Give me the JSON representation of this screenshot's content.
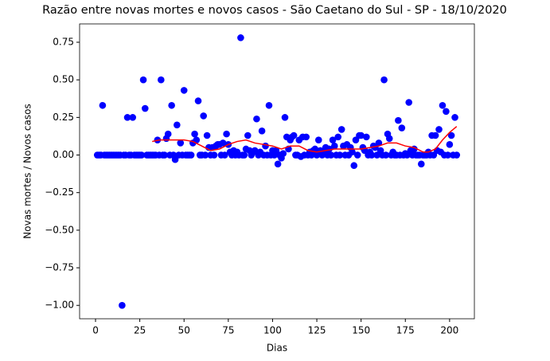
{
  "chart_data": {
    "type": "scatter",
    "title": "Razão entre novas mortes e novos casos - São Caetano do Sul - SP - 18/10/2020",
    "x_label": "Dias",
    "y_label": "Novas mortes / Novos casos",
    "xlim": [
      -9,
      214
    ],
    "ylim": [
      -1.089,
      0.872
    ],
    "xticks": [
      0,
      25,
      50,
      75,
      100,
      125,
      150,
      175,
      200
    ],
    "yticks": [
      {
        "value": -1,
        "label": "−1.00"
      },
      {
        "value": -0.75,
        "label": "−0.75"
      },
      {
        "value": -0.5,
        "label": "−0.50"
      },
      {
        "value": -0.25,
        "label": "−0.25"
      },
      {
        "value": 0,
        "label": "0.00"
      },
      0.25,
      {
        "value": 0.5,
        "label": "0.50"
      },
      0.75
    ],
    "series": [
      {
        "type": "scatter",
        "color": "#0000ff",
        "x": [
          1,
          2,
          3,
          4,
          5,
          6,
          7,
          8,
          9,
          10,
          11,
          12,
          13,
          14,
          15,
          16,
          17,
          18,
          19,
          20,
          21,
          22,
          23,
          24,
          25,
          26,
          27,
          28,
          29,
          30,
          31,
          32,
          33,
          34,
          35,
          36,
          37,
          38,
          39,
          40,
          41,
          42,
          43,
          44,
          45,
          46,
          47,
          48,
          49,
          50,
          51,
          52,
          53,
          54,
          55,
          56,
          57,
          58,
          59,
          60,
          61,
          62,
          63,
          64,
          65,
          66,
          67,
          68,
          69,
          70,
          71,
          72,
          73,
          74,
          75,
          76,
          77,
          78,
          79,
          80,
          81,
          82,
          83,
          84,
          85,
          86,
          87,
          88,
          89,
          90,
          91,
          92,
          93,
          94,
          95,
          96,
          97,
          98,
          99,
          100,
          101,
          102,
          103,
          104,
          105,
          106,
          107,
          108,
          109,
          110,
          111,
          112,
          113,
          114,
          115,
          116,
          117,
          118,
          119,
          120,
          121,
          122,
          123,
          124,
          125,
          126,
          127,
          128,
          129,
          130,
          131,
          132,
          133,
          134,
          135,
          136,
          137,
          138,
          139,
          140,
          141,
          142,
          143,
          144,
          145,
          146,
          147,
          148,
          149,
          150,
          151,
          152,
          153,
          154,
          155,
          156,
          157,
          158,
          159,
          160,
          161,
          162,
          163,
          164,
          165,
          166,
          167,
          168,
          169,
          170,
          171,
          172,
          173,
          174,
          175,
          176,
          177,
          178,
          179,
          180,
          181,
          182,
          183,
          184,
          185,
          186,
          187,
          188,
          189,
          190,
          191,
          192,
          193,
          194,
          195,
          196,
          197,
          198,
          199,
          200,
          201,
          202,
          203,
          204
        ],
        "values": [
          0,
          0,
          0,
          0.33,
          0,
          0,
          0,
          0,
          0,
          0,
          0,
          0,
          0,
          0,
          -1,
          0,
          0,
          0.25,
          0,
          0,
          0.25,
          0,
          0,
          0,
          0,
          0,
          0.5,
          0.31,
          0,
          0,
          0,
          0,
          0,
          0,
          0.1,
          0,
          0.5,
          0,
          0,
          0.11,
          0.14,
          0,
          0.33,
          0,
          -0.03,
          0.2,
          0,
          0.08,
          0,
          0.43,
          0,
          0,
          0,
          0,
          0.08,
          0.14,
          0.1,
          0.36,
          0,
          0,
          0.26,
          0,
          0.13,
          0.05,
          0,
          0.05,
          0,
          0.06,
          0.07,
          0.07,
          0,
          0.08,
          0,
          0.14,
          0.07,
          0.02,
          0,
          0.03,
          0,
          0.02,
          0,
          0.78,
          0,
          0,
          0.04,
          0.13,
          0.03,
          0,
          0.02,
          0.03,
          0.24,
          0,
          0.02,
          0.16,
          0,
          0.06,
          0,
          0.33,
          0,
          0.03,
          0,
          0.03,
          -0.06,
          0,
          -0.02,
          0.01,
          0.25,
          0.12,
          0.04,
          0.1,
          0.12,
          0.13,
          0,
          0,
          0.1,
          -0.01,
          0.12,
          0,
          0.12,
          0,
          0.02,
          0,
          0.03,
          0.04,
          0,
          0.1,
          0.03,
          0,
          0.02,
          0.05,
          0,
          0.04,
          0,
          0.1,
          0.06,
          0,
          0.12,
          0,
          0.17,
          0.06,
          0,
          0.07,
          0,
          0.05,
          0.02,
          -0.07,
          0.1,
          0,
          0.13,
          0.13,
          0.05,
          0.03,
          0.12,
          0,
          0.02,
          0,
          0.06,
          0.05,
          0,
          0.08,
          0.03,
          0,
          0.5,
          0,
          0.14,
          0.11,
          0,
          0.02,
          0,
          0,
          0.23,
          0,
          0.18,
          0,
          0.01,
          0,
          0.35,
          0.03,
          0,
          0.04,
          0,
          0,
          0,
          -0.06,
          0,
          0,
          0,
          0.02,
          0,
          0.13,
          0,
          0.13,
          0.03,
          0.17,
          0.02,
          0.33,
          0,
          0.29,
          0,
          0.07,
          0.13,
          0,
          0.25,
          0
        ]
      },
      {
        "type": "line",
        "color": "#ff0000",
        "x": [
          32,
          36,
          40,
          45,
          50,
          55,
          60,
          65,
          70,
          75,
          80,
          85,
          90,
          95,
          100,
          105,
          110,
          115,
          120,
          125,
          130,
          135,
          140,
          145,
          150,
          155,
          160,
          165,
          170,
          175,
          180,
          185,
          188,
          192,
          196,
          200,
          204
        ],
        "values": [
          0.09,
          0.1,
          0.1,
          0.1,
          0.1,
          0.09,
          0.06,
          0.03,
          0.04,
          0.07,
          0.09,
          0.1,
          0.08,
          0.07,
          0.06,
          0.04,
          0.06,
          0.06,
          0.03,
          0.02,
          0.03,
          0.04,
          0.04,
          0.04,
          0.04,
          0.05,
          0.06,
          0.08,
          0.08,
          0.06,
          0.05,
          0.02,
          0.02,
          0.04,
          0.1,
          0.15,
          0.19
        ]
      }
    ]
  }
}
